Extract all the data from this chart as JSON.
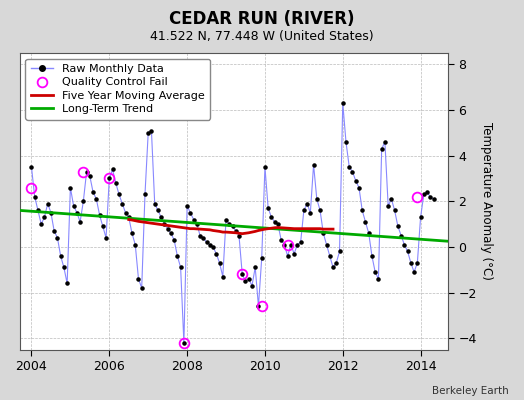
{
  "title": "CEDAR RUN (RIVER)",
  "subtitle": "41.522 N, 77.448 W (United States)",
  "ylabel": "Temperature Anomaly (°C)",
  "credit": "Berkeley Earth",
  "xlim": [
    2003.7,
    2014.7
  ],
  "ylim": [
    -4.5,
    8.5
  ],
  "yticks": [
    -4,
    -2,
    0,
    2,
    4,
    6,
    8
  ],
  "xticks": [
    2004,
    2006,
    2008,
    2010,
    2012,
    2014
  ],
  "bg_color": "#d8d8d8",
  "plot_bg_color": "#ffffff",
  "raw_color": "#8888ff",
  "raw_dot_color": "#000000",
  "ma_color": "#cc0000",
  "trend_color": "#00aa00",
  "qc_color": "#ff00ff",
  "raw_x": [
    2004.0,
    2004.083,
    2004.167,
    2004.25,
    2004.333,
    2004.417,
    2004.5,
    2004.583,
    2004.667,
    2004.75,
    2004.833,
    2004.917,
    2005.0,
    2005.083,
    2005.167,
    2005.25,
    2005.333,
    2005.417,
    2005.5,
    2005.583,
    2005.667,
    2005.75,
    2005.833,
    2005.917,
    2006.0,
    2006.083,
    2006.167,
    2006.25,
    2006.333,
    2006.417,
    2006.5,
    2006.583,
    2006.667,
    2006.75,
    2006.833,
    2006.917,
    2007.0,
    2007.083,
    2007.167,
    2007.25,
    2007.333,
    2007.417,
    2007.5,
    2007.583,
    2007.667,
    2007.75,
    2007.833,
    2007.917,
    2008.0,
    2008.083,
    2008.167,
    2008.25,
    2008.333,
    2008.417,
    2008.5,
    2008.583,
    2008.667,
    2008.75,
    2008.833,
    2008.917,
    2009.0,
    2009.083,
    2009.167,
    2009.25,
    2009.333,
    2009.417,
    2009.5,
    2009.583,
    2009.667,
    2009.75,
    2009.833,
    2009.917,
    2010.0,
    2010.083,
    2010.167,
    2010.25,
    2010.333,
    2010.417,
    2010.5,
    2010.583,
    2010.667,
    2010.75,
    2010.833,
    2010.917,
    2011.0,
    2011.083,
    2011.167,
    2011.25,
    2011.333,
    2011.417,
    2011.5,
    2011.583,
    2011.667,
    2011.75,
    2011.833,
    2011.917,
    2012.0,
    2012.083,
    2012.167,
    2012.25,
    2012.333,
    2012.417,
    2012.5,
    2012.583,
    2012.667,
    2012.75,
    2012.833,
    2012.917,
    2013.0,
    2013.083,
    2013.167,
    2013.25,
    2013.333,
    2013.417,
    2013.5,
    2013.583,
    2013.667,
    2013.75,
    2013.833,
    2013.917,
    2014.0,
    2014.083,
    2014.167,
    2014.25,
    2014.333
  ],
  "raw_y": [
    3.5,
    2.2,
    1.6,
    1.0,
    1.3,
    1.9,
    1.5,
    0.7,
    0.4,
    -0.4,
    -0.9,
    -1.6,
    2.6,
    1.8,
    1.5,
    1.1,
    2.0,
    3.3,
    3.1,
    2.4,
    2.1,
    1.4,
    0.9,
    0.4,
    3.0,
    3.4,
    2.8,
    2.3,
    1.9,
    1.5,
    1.3,
    0.6,
    0.1,
    -1.4,
    -1.8,
    2.3,
    5.0,
    5.1,
    1.9,
    1.6,
    1.3,
    1.0,
    0.8,
    0.6,
    0.3,
    -0.4,
    -0.9,
    -4.2,
    1.8,
    1.5,
    1.2,
    1.0,
    0.5,
    0.4,
    0.2,
    0.1,
    0.0,
    -0.3,
    -0.7,
    -1.3,
    1.2,
    1.0,
    0.9,
    0.7,
    0.5,
    -1.2,
    -1.5,
    -1.4,
    -1.7,
    -0.9,
    -2.6,
    -0.5,
    3.5,
    1.7,
    1.3,
    1.1,
    1.0,
    0.3,
    0.1,
    -0.4,
    0.1,
    -0.3,
    0.1,
    0.2,
    1.6,
    1.9,
    1.5,
    3.6,
    2.1,
    1.6,
    0.6,
    0.1,
    -0.4,
    -0.9,
    -0.7,
    -0.2,
    6.3,
    4.6,
    3.5,
    3.3,
    2.9,
    2.6,
    1.6,
    1.1,
    0.6,
    -0.4,
    -1.1,
    -1.4,
    4.3,
    4.6,
    1.8,
    2.1,
    1.6,
    0.9,
    0.5,
    0.1,
    -0.2,
    -0.7,
    -1.1,
    -0.7,
    1.3,
    2.3,
    2.4,
    2.2,
    2.1
  ],
  "qc_x": [
    2004.0,
    2005.333,
    2006.0,
    2007.917,
    2009.417,
    2009.917,
    2010.583,
    2013.917
  ],
  "qc_y": [
    2.6,
    3.3,
    3.0,
    -4.2,
    -1.2,
    -2.6,
    0.1,
    2.2
  ],
  "ma_x": [
    2006.5,
    2006.583,
    2006.667,
    2006.75,
    2006.833,
    2006.917,
    2007.0,
    2007.083,
    2007.167,
    2007.25,
    2007.333,
    2007.417,
    2007.5,
    2007.583,
    2007.667,
    2007.75,
    2007.833,
    2007.917,
    2008.0,
    2008.083,
    2008.167,
    2008.25,
    2008.333,
    2008.417,
    2008.5,
    2008.583,
    2008.667,
    2008.75,
    2008.833,
    2008.917,
    2009.0,
    2009.083,
    2009.167,
    2009.25,
    2009.333,
    2009.417,
    2009.5,
    2009.583,
    2009.667,
    2009.75,
    2009.833,
    2009.917,
    2010.0,
    2010.083,
    2010.167,
    2010.25,
    2010.333,
    2010.417,
    2010.5,
    2010.583,
    2010.667,
    2010.75,
    2010.833,
    2010.917,
    2011.0,
    2011.083,
    2011.167,
    2011.25,
    2011.333,
    2011.417,
    2011.5,
    2011.583,
    2011.667,
    2011.75
  ],
  "ma_y": [
    1.2,
    1.18,
    1.15,
    1.12,
    1.1,
    1.08,
    1.06,
    1.04,
    1.02,
    1.0,
    0.98,
    0.96,
    0.94,
    0.92,
    0.9,
    0.88,
    0.86,
    0.84,
    0.82,
    0.8,
    0.8,
    0.79,
    0.78,
    0.77,
    0.76,
    0.75,
    0.72,
    0.7,
    0.68,
    0.65,
    0.65,
    0.64,
    0.63,
    0.62,
    0.6,
    0.58,
    0.6,
    0.62,
    0.65,
    0.68,
    0.72,
    0.75,
    0.78,
    0.8,
    0.82,
    0.84,
    0.85,
    0.84,
    0.83,
    0.82,
    0.81,
    0.8,
    0.8,
    0.8,
    0.8,
    0.8,
    0.8,
    0.8,
    0.8,
    0.8,
    0.78,
    0.78,
    0.78,
    0.78
  ],
  "trend_x": [
    2003.7,
    2014.7
  ],
  "trend_y": [
    1.6,
    0.25
  ]
}
